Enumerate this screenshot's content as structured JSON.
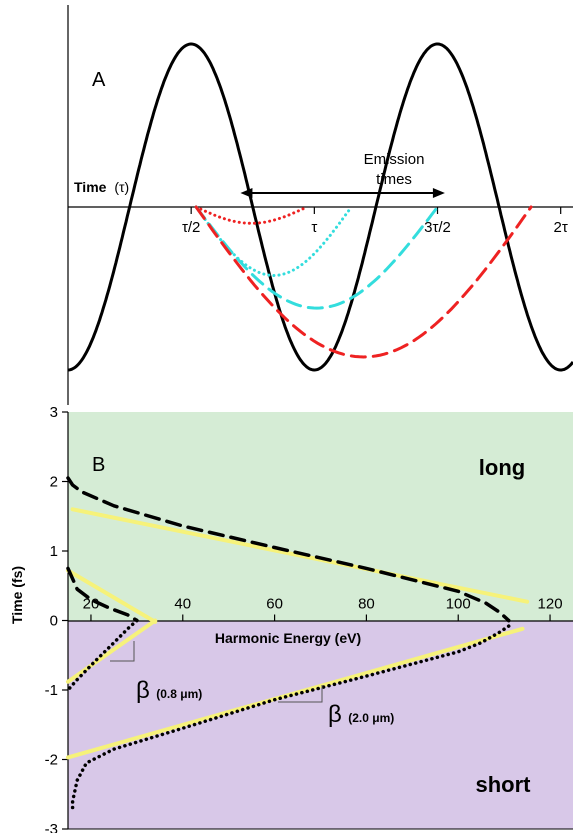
{
  "chart_data": [
    {
      "panel": "A",
      "type": "line",
      "panel_label": "A",
      "xlabel_prefix": "Time",
      "xlabel_symbol": "(τ)",
      "x_ticks": [
        {
          "x": 0.5,
          "label": "τ/2"
        },
        {
          "x": 1.0,
          "label": "τ"
        },
        {
          "x": 1.5,
          "label": "3τ/2"
        },
        {
          "x": 2.0,
          "label": "2τ"
        }
      ],
      "xlim": [
        0,
        2.05
      ],
      "ylim": [
        -1.15,
        1.15
      ],
      "annotation": {
        "lines": [
          "Emission",
          "times"
        ],
        "arrow_from": 0.7,
        "arrow_to": 1.53
      },
      "field": {
        "description_free": true,
        "amplitude": 1.0,
        "color": "#000000"
      },
      "trajectories": [
        {
          "color": "#ee2222",
          "style": "dotted",
          "start": 0.52,
          "end": 0.97,
          "depth": 0.1
        },
        {
          "color": "#33dddd",
          "style": "dotted",
          "start": 0.52,
          "end": 1.15,
          "depth": 0.42
        },
        {
          "color": "#33dddd",
          "style": "dashed",
          "start": 0.52,
          "end": 1.5,
          "depth": 0.62
        },
        {
          "color": "#ee2222",
          "style": "dashed",
          "start": 0.52,
          "end": 1.88,
          "depth": 0.92
        }
      ]
    },
    {
      "panel": "B",
      "type": "line",
      "panel_label": "B",
      "xlabel": "Harmonic Energy (eV)",
      "ylabel": "Time (fs)",
      "xlim": [
        15,
        125
      ],
      "ylim": [
        -3,
        3
      ],
      "x_ticks": [
        20,
        40,
        60,
        80,
        100,
        120
      ],
      "y_ticks": [
        3,
        2,
        1,
        0,
        -1,
        -2,
        -3
      ],
      "regions": [
        {
          "label": "long",
          "color": "#d5ecd5",
          "label_color": "#1a7a1a",
          "y_range": [
            0,
            3
          ]
        },
        {
          "label": "short",
          "color": "#d8c8e8",
          "label_color": "#7a1a7a",
          "y_range": [
            -3,
            0
          ]
        }
      ],
      "beta_labels": [
        {
          "symbol": "β",
          "sub": "(0.8 μm)"
        },
        {
          "symbol": "β",
          "sub": "(2.0 μm)"
        }
      ],
      "series": [
        {
          "style": "dashed",
          "color": "#000000",
          "points": [
            [
              15,
              0.75
            ],
            [
              17,
              0.45
            ],
            [
              20,
              0.3
            ],
            [
              24,
              0.18
            ],
            [
              28,
              0.08
            ],
            [
              30,
              0.0
            ]
          ]
        },
        {
          "style": "dotted",
          "color": "#000000",
          "points": [
            [
              30,
              0.0
            ],
            [
              28,
              -0.12
            ],
            [
              25,
              -0.32
            ],
            [
              21,
              -0.58
            ],
            [
              17,
              -0.85
            ],
            [
              15,
              -1.0
            ]
          ]
        },
        {
          "style": "dashed",
          "color": "#000000",
          "points": [
            [
              15,
              2.05
            ],
            [
              16,
              1.95
            ],
            [
              18,
              1.85
            ],
            [
              25,
              1.65
            ],
            [
              40,
              1.36
            ],
            [
              60,
              1.05
            ],
            [
              80,
              0.75
            ],
            [
              100,
              0.42
            ],
            [
              106,
              0.25
            ],
            [
              109,
              0.12
            ],
            [
              111,
              0.0
            ]
          ]
        },
        {
          "style": "dotted",
          "color": "#000000",
          "points": [
            [
              111,
              0.0
            ],
            [
              111,
              -0.08
            ],
            [
              109,
              -0.17
            ],
            [
              105,
              -0.32
            ],
            [
              100,
              -0.45
            ],
            [
              80,
              -0.8
            ],
            [
              60,
              -1.14
            ],
            [
              40,
              -1.55
            ],
            [
              25,
              -1.85
            ],
            [
              19,
              -2.05
            ],
            [
              17,
              -2.3
            ],
            [
              16,
              -2.6
            ],
            [
              16,
              -2.7
            ]
          ]
        },
        {
          "style": "solid",
          "color": "#f6f27a",
          "points": [
            [
              16,
              1.6
            ],
            [
              115,
              0.27
            ]
          ]
        },
        {
          "style": "solid",
          "color": "#f6f27a",
          "points": [
            [
              15,
              0.72
            ],
            [
              34,
              -0.02
            ]
          ]
        },
        {
          "style": "solid",
          "color": "#f6f27a",
          "points": [
            [
              15,
              -0.88
            ],
            [
              34,
              0.0
            ]
          ]
        },
        {
          "style": "solid",
          "color": "#f6f27a",
          "points": [
            [
              15,
              -1.97
            ],
            [
              114,
              -0.12
            ]
          ]
        }
      ]
    }
  ]
}
